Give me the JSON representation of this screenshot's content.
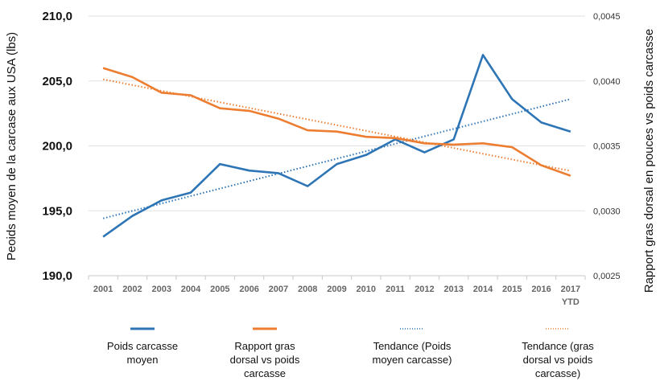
{
  "chart_data": {
    "type": "line",
    "categories": [
      "2001",
      "2002",
      "2003",
      "2004",
      "2005",
      "2006",
      "2007",
      "2008",
      "2009",
      "2010",
      "2011",
      "2012",
      "2013",
      "2014",
      "2015",
      "2016",
      "2017"
    ],
    "category_sublabels": {
      "2017": "YTD"
    },
    "ylabel": "Peoids moyen de la carcase aux USA (lbs)",
    "y2label": "Rapport gras dorsal en pouces vs poids carcasse",
    "ylim": [
      190,
      210
    ],
    "y2lim": [
      0.0025,
      0.0045
    ],
    "yticks": [
      "190,0",
      "195,0",
      "200,0",
      "205,0",
      "210,0"
    ],
    "y2ticks": [
      "0,0025",
      "0,0030",
      "0,0035",
      "0,0040",
      "0,0045"
    ],
    "grid": true,
    "legend_position": "bottom",
    "series": [
      {
        "name": "Poids carcasse moyen",
        "axis": "left",
        "color": "#2e75b6",
        "style": "solid",
        "values": [
          193.0,
          194.6,
          195.8,
          196.4,
          198.6,
          198.1,
          197.9,
          196.9,
          198.6,
          199.3,
          200.5,
          199.5,
          200.5,
          207.0,
          203.6,
          201.8,
          201.1
        ]
      },
      {
        "name": "Rapport gras dorsal vs poids carcasse",
        "axis": "right",
        "color": "#ed7d31",
        "style": "solid",
        "values": [
          0.0041,
          0.00403,
          0.00391,
          0.00389,
          0.00379,
          0.00377,
          0.00371,
          0.00362,
          0.00361,
          0.00357,
          0.00356,
          0.00352,
          0.00351,
          0.00352,
          0.00349,
          0.00335,
          0.00327
        ]
      },
      {
        "name": "Tendance (Poids moyen carcasse)",
        "axis": "left",
        "color": "#2e75b6",
        "style": "dotted",
        "trend_of": 0
      },
      {
        "name": "Tendance (gras dorsal vs poids carcasse)",
        "axis": "right",
        "color": "#ed7d31",
        "style": "dotted",
        "trend_of": 1
      }
    ],
    "legend": [
      {
        "lines": [
          "Poids carcasse",
          "moyen"
        ]
      },
      {
        "lines": [
          "Rapport gras",
          "dorsal vs poids",
          "carcasse"
        ]
      },
      {
        "lines": [
          "Tendance (Poids",
          "moyen carcasse)"
        ]
      },
      {
        "lines": [
          "Tendance (gras",
          "dorsal vs poids",
          "carcasse)"
        ]
      }
    ]
  }
}
